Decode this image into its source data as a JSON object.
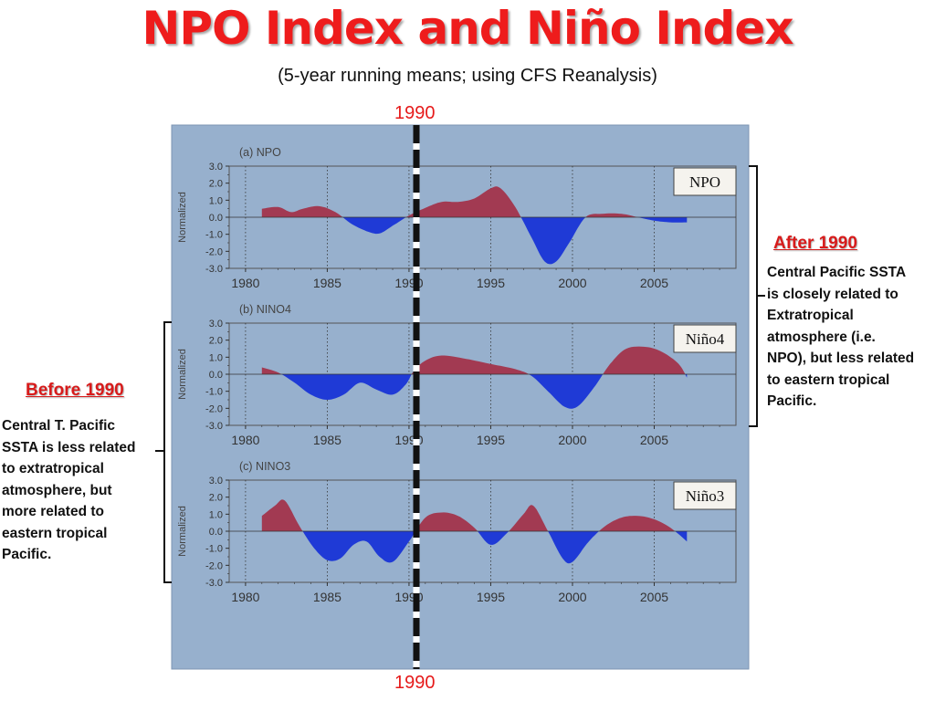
{
  "title": "NPO Index and Niño Index",
  "subtitle": "(5-year running means; using CFS Reanalysis)",
  "marker_year_label": "1990",
  "marker_year_label_bottom": "1990",
  "before": {
    "title": "Before 1990",
    "text": "Central T. Pacific\nSSTA is less related\nto extratropical\natmosphere, but\nmore related to\neastern tropical\nPacific."
  },
  "after": {
    "title": "After 1990",
    "text": "Central Pacific SSTA\nis closely related to\nExtratropical\natmosphere (i.e.\nNPO), but less related\nto eastern tropical\nPacific."
  },
  "colors": {
    "positive": "#a23a52",
    "negative": "#1f3ad6",
    "panel_bg": "#97b0cd",
    "marker": "#111111"
  },
  "chart_data": [
    {
      "type": "area",
      "panel_label": "(a)  NPO",
      "box_label": "NPO",
      "ylabel": "Normalized",
      "x_ticks": [
        1980,
        1985,
        1990,
        1995,
        2000,
        2005
      ],
      "y_ticks": [
        "3.0",
        "2.0",
        "1.0",
        "0.0",
        "-1.0",
        "-2.0",
        "-3.0"
      ],
      "xlim": [
        1979,
        2010
      ],
      "ylim": [
        -3,
        3
      ],
      "x": [
        1981.0,
        1982.0,
        1982.8,
        1983.5,
        1984.5,
        1985.5,
        1986.5,
        1987.5,
        1988.2,
        1989.0,
        1990.0,
        1991.0,
        1992.0,
        1993.0,
        1994.0,
        1995.0,
        1995.6,
        1996.5,
        1997.5,
        1998.3,
        1999.0,
        1999.8,
        2000.8,
        2001.8,
        2003.0,
        2004.0,
        2005.0,
        2006.0,
        2007.0
      ],
      "y": [
        0.5,
        0.6,
        0.3,
        0.5,
        0.65,
        0.3,
        -0.4,
        -0.85,
        -0.95,
        -0.5,
        0.1,
        0.55,
        0.9,
        0.9,
        1.1,
        1.7,
        1.7,
        0.6,
        -1.2,
        -2.6,
        -2.6,
        -1.5,
        0.0,
        0.2,
        0.2,
        0.0,
        -0.2,
        -0.3,
        -0.3
      ]
    },
    {
      "type": "area",
      "panel_label": "(b)  NINO4",
      "box_label": "Niño4",
      "ylabel": "Normalized",
      "x_ticks": [
        1980,
        1985,
        1990,
        1995,
        2000,
        2005
      ],
      "y_ticks": [
        "3.0",
        "2.0",
        "1.0",
        "0.0",
        "-1.0",
        "-2.0",
        "-3.0"
      ],
      "xlim": [
        1979,
        2010
      ],
      "ylim": [
        -3,
        3
      ],
      "x": [
        1981.0,
        1982.0,
        1983.0,
        1984.0,
        1985.0,
        1986.0,
        1987.0,
        1988.0,
        1989.0,
        1989.8,
        1990.3,
        1991.0,
        1992.0,
        1993.5,
        1995.0,
        1996.5,
        1997.5,
        1998.5,
        1999.5,
        2000.3,
        2001.3,
        2002.3,
        2003.3,
        2004.5,
        2005.5,
        2006.5,
        2007.0
      ],
      "y": [
        0.4,
        0.1,
        -0.5,
        -1.2,
        -1.5,
        -1.2,
        -0.5,
        -0.9,
        -1.2,
        -0.6,
        0.2,
        0.8,
        1.1,
        0.9,
        0.6,
        0.3,
        -0.1,
        -1.0,
        -1.9,
        -1.9,
        -0.8,
        0.6,
        1.5,
        1.6,
        1.3,
        0.6,
        -0.2
      ]
    },
    {
      "type": "area",
      "panel_label": "(c)  NINO3",
      "box_label": "Niño3",
      "ylabel": "Normalized",
      "x_ticks": [
        1980,
        1985,
        1990,
        1995,
        2000,
        2005
      ],
      "y_ticks": [
        "3.0",
        "2.0",
        "1.0",
        "0.0",
        "-1.0",
        "-2.0",
        "-3.0"
      ],
      "xlim": [
        1979,
        2010
      ],
      "ylim": [
        -3,
        3
      ],
      "x": [
        1981.0,
        1981.8,
        1982.4,
        1983.3,
        1984.2,
        1985.0,
        1985.8,
        1986.6,
        1987.4,
        1988.2,
        1989.0,
        1990.0,
        1991.0,
        1992.0,
        1993.0,
        1994.0,
        1995.0,
        1996.0,
        1997.0,
        1997.6,
        1998.5,
        1999.4,
        2000.0,
        2001.0,
        2002.0,
        2003.0,
        2004.0,
        2005.0,
        2006.0,
        2007.0
      ],
      "y": [
        0.9,
        1.5,
        1.8,
        0.3,
        -1.0,
        -1.7,
        -1.6,
        -0.8,
        -0.6,
        -1.5,
        -1.8,
        -0.6,
        0.8,
        1.1,
        0.9,
        0.2,
        -0.8,
        -0.1,
        1.0,
        1.5,
        0.0,
        -1.6,
        -1.8,
        -0.6,
        0.3,
        0.8,
        0.9,
        0.7,
        0.2,
        -0.6
      ]
    }
  ]
}
